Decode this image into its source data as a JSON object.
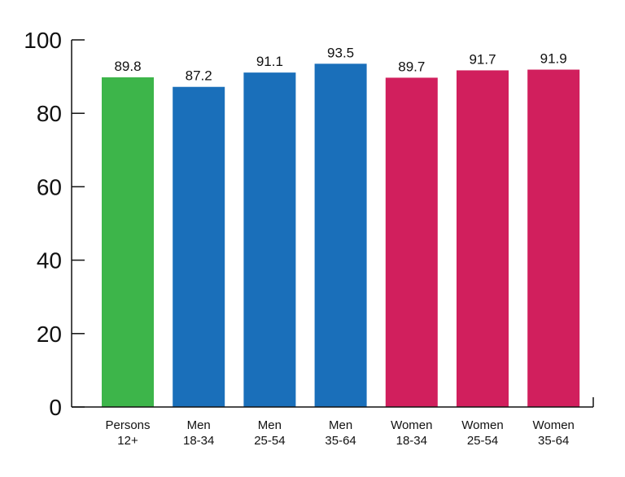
{
  "chart_data": {
    "type": "bar",
    "categories": [
      [
        "Persons",
        "12+"
      ],
      [
        "Men",
        "18-34"
      ],
      [
        "Men",
        "25-54"
      ],
      [
        "Men",
        "35-64"
      ],
      [
        "Women",
        "18-34"
      ],
      [
        "Women",
        "25-54"
      ],
      [
        "Women",
        "35-64"
      ]
    ],
    "values": [
      89.8,
      87.2,
      91.1,
      93.5,
      89.7,
      91.7,
      91.9
    ],
    "value_labels": [
      "89.8",
      "87.2",
      "91.1",
      "93.5",
      "89.7",
      "91.7",
      "91.9"
    ],
    "bar_colors": [
      "#3db54a",
      "#1a6fba",
      "#1a6fba",
      "#1a6fba",
      "#d11f5d",
      "#d11f5d",
      "#d11f5d"
    ],
    "ylim": [
      0,
      100
    ],
    "yticks": [
      0,
      20,
      40,
      60,
      80,
      100
    ],
    "ytick_labels": [
      "0",
      "20",
      "40",
      "60",
      "80",
      "100"
    ],
    "grid": false,
    "legend": "none"
  }
}
